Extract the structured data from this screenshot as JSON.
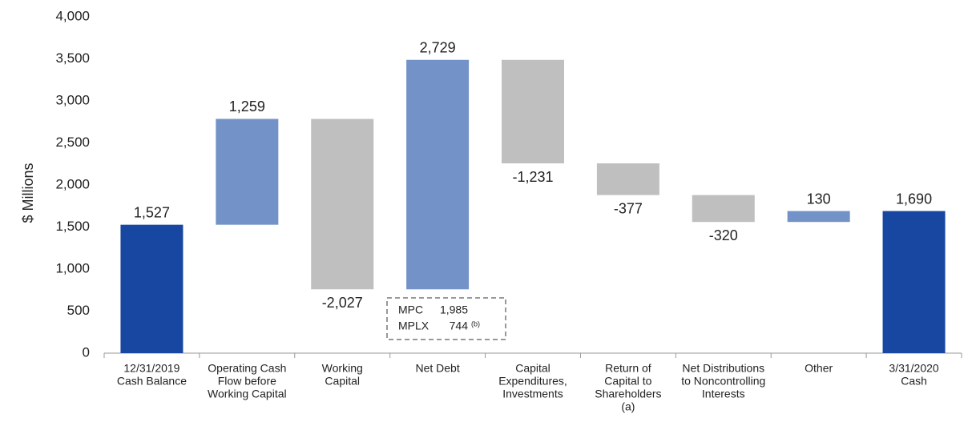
{
  "chart_data": {
    "type": "waterfall",
    "y_label": "$ Millions",
    "categories": [
      [
        "12/31/2019",
        "Cash Balance"
      ],
      [
        "Operating Cash",
        "Flow before",
        "Working Capital"
      ],
      [
        "Working",
        "Capital"
      ],
      [
        "Net Debt"
      ],
      [
        "Capital",
        "Expenditures,",
        "Investments"
      ],
      [
        "Return of",
        "Capital to",
        "Shareholders",
        "(a)"
      ],
      [
        "Net Distributions",
        "to Noncontrolling",
        "Interests"
      ],
      [
        "Other"
      ],
      [
        "3/31/2020",
        "Cash"
      ]
    ],
    "values": [
      1527,
      1259,
      -2027,
      2729,
      -1231,
      -377,
      -320,
      130,
      1690
    ],
    "value_labels": [
      "1,527",
      "1,259",
      "-2,027",
      "2,729",
      "-1,231",
      "-377",
      "-320",
      "130",
      "1,690"
    ],
    "total_indices": [
      0,
      8
    ],
    "colors": {
      "total": "#1747a0",
      "increase": "#7393c8",
      "decrease": "#bfbfbf"
    },
    "ylim": [
      0,
      4000
    ],
    "yticks": [
      0,
      500,
      {
        "value": 1000,
        "label": "1,000"
      },
      {
        "value": 1500,
        "label": "1,500"
      },
      {
        "value": 2000,
        "label": "2,000"
      },
      {
        "value": 2500,
        "label": "2,500"
      },
      {
        "value": 3000,
        "label": "3,000"
      },
      {
        "value": 3500,
        "label": "3,500"
      },
      {
        "value": 4000,
        "label": "4,000"
      }
    ],
    "annotation": {
      "rows": [
        {
          "label": "MPC",
          "value": "1,985"
        },
        {
          "label": "MPLX",
          "value": "744",
          "note": "(b)"
        }
      ]
    }
  }
}
